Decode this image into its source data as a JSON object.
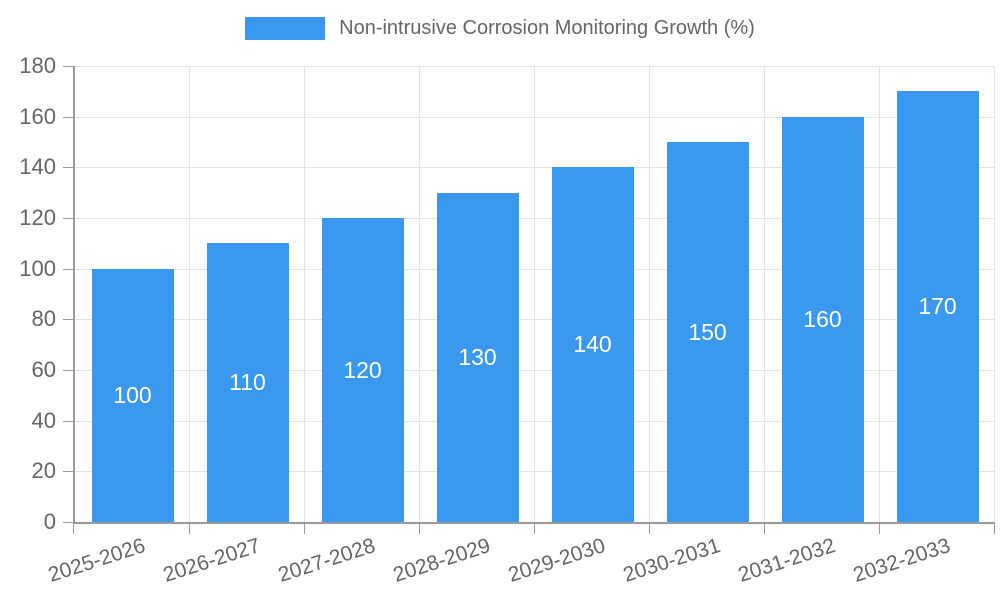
{
  "chart_data": {
    "type": "bar",
    "legend": "Non-intrusive Corrosion Monitoring Growth (%)",
    "legend_position": "top",
    "categories": [
      "2025-2026",
      "2026-2027",
      "2027-2028",
      "2028-2029",
      "2029-2030",
      "2030-2031",
      "2031-2032",
      "2032-2033"
    ],
    "values": [
      100,
      110,
      120,
      130,
      140,
      150,
      160,
      170
    ],
    "bar_labels": [
      "100",
      "110",
      "120",
      "130",
      "140",
      "150",
      "160",
      "170"
    ],
    "ylim": [
      0,
      180
    ],
    "ytick_step": 20,
    "yticks": [
      0,
      20,
      40,
      60,
      80,
      100,
      120,
      140,
      160,
      180
    ],
    "grid": true,
    "xlabel": "",
    "ylabel": "",
    "title": "",
    "colors": {
      "bar": "#3A99EE",
      "bar_label": "#FFFFFF",
      "axis_line": "#9A9A9A",
      "gridline": "#E3E3E3",
      "tick_text": "#666666",
      "legend_text": "#666666",
      "background": "#FFFFFF"
    }
  }
}
